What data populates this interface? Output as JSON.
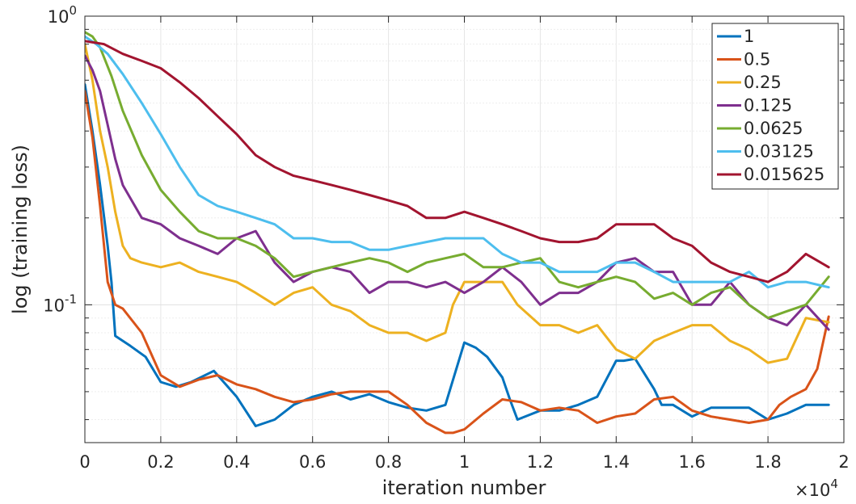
{
  "chart_data": {
    "type": "line",
    "xlabel": "iteration number",
    "ylabel": "log (training loss)",
    "x_multiplier_base": "×10",
    "x_multiplier_exp": "4",
    "x_scale": 10000,
    "xlim": [
      0,
      20000
    ],
    "ylim": [
      0.0333,
      1.0
    ],
    "y_scale": "log",
    "x_ticks": [
      0,
      2000,
      4000,
      6000,
      8000,
      10000,
      12000,
      14000,
      16000,
      18000,
      20000
    ],
    "x_tick_labels": [
      "0",
      "0.2",
      "0.4",
      "0.6",
      "0.8",
      "1",
      "1.2",
      "1.4",
      "1.6",
      "1.8",
      "2"
    ],
    "y_tick_labels": [
      {
        "value": 1.0,
        "base": "10",
        "exp": "0"
      },
      {
        "value": 0.1,
        "base": "10",
        "exp": "-1"
      }
    ],
    "grid": true,
    "legend_position": "top-right",
    "series": [
      {
        "name": "1",
        "color": "#0072BD",
        "x": [
          0,
          200,
          400,
          600,
          700,
          800,
          1200,
          1600,
          2000,
          2400,
          2800,
          3400,
          4000,
          4500,
          5000,
          5500,
          6000,
          6500,
          7000,
          7500,
          8000,
          8500,
          9000,
          9500,
          10000,
          10300,
          10600,
          11000,
          11200,
          11400,
          12000,
          12500,
          13000,
          13500,
          14000,
          14200,
          14500,
          15000,
          15200,
          15500,
          16000,
          16500,
          17000,
          17500,
          18000,
          18500,
          19000,
          19600
        ],
        "y": [
          0.58,
          0.4,
          0.26,
          0.16,
          0.12,
          0.078,
          0.072,
          0.066,
          0.054,
          0.052,
          0.054,
          0.059,
          0.048,
          0.038,
          0.04,
          0.045,
          0.048,
          0.05,
          0.047,
          0.049,
          0.046,
          0.044,
          0.043,
          0.045,
          0.074,
          0.071,
          0.066,
          0.056,
          0.047,
          0.04,
          0.043,
          0.043,
          0.045,
          0.048,
          0.064,
          0.064,
          0.065,
          0.051,
          0.045,
          0.045,
          0.041,
          0.044,
          0.044,
          0.044,
          0.04,
          0.042,
          0.045,
          0.045
        ]
      },
      {
        "name": "0.5",
        "color": "#D95319",
        "x": [
          0,
          200,
          400,
          600,
          800,
          1000,
          1500,
          2000,
          2500,
          3000,
          3500,
          4000,
          4500,
          5000,
          5500,
          6000,
          6500,
          7000,
          7500,
          8000,
          8500,
          9000,
          9500,
          9700,
          10000,
          10500,
          11000,
          11500,
          12000,
          12500,
          13000,
          13500,
          14000,
          14500,
          15000,
          15500,
          16000,
          16500,
          17000,
          17500,
          18000,
          18300,
          18600,
          19000,
          19300,
          19600
        ],
        "y": [
          0.55,
          0.38,
          0.22,
          0.12,
          0.1,
          0.097,
          0.08,
          0.057,
          0.052,
          0.055,
          0.057,
          0.053,
          0.051,
          0.048,
          0.046,
          0.047,
          0.049,
          0.05,
          0.05,
          0.05,
          0.045,
          0.039,
          0.036,
          0.036,
          0.037,
          0.042,
          0.047,
          0.046,
          0.043,
          0.044,
          0.043,
          0.039,
          0.041,
          0.042,
          0.047,
          0.048,
          0.043,
          0.041,
          0.04,
          0.039,
          0.04,
          0.045,
          0.048,
          0.051,
          0.06,
          0.091
        ]
      },
      {
        "name": "0.25",
        "color": "#EDB120",
        "x": [
          0,
          200,
          400,
          600,
          800,
          1000,
          1200,
          1500,
          2000,
          2500,
          3000,
          3500,
          4000,
          4500,
          5000,
          5500,
          6000,
          6500,
          7000,
          7500,
          8000,
          8500,
          9000,
          9500,
          9700,
          10000,
          10500,
          11000,
          11400,
          12000,
          12500,
          13000,
          13500,
          14000,
          14500,
          15000,
          15500,
          16000,
          16500,
          17000,
          17500,
          18000,
          18500,
          19000,
          19600
        ],
        "y": [
          0.8,
          0.6,
          0.4,
          0.3,
          0.21,
          0.16,
          0.145,
          0.14,
          0.135,
          0.14,
          0.13,
          0.125,
          0.12,
          0.11,
          0.1,
          0.11,
          0.115,
          0.1,
          0.095,
          0.085,
          0.08,
          0.08,
          0.075,
          0.08,
          0.1,
          0.12,
          0.12,
          0.12,
          0.1,
          0.085,
          0.085,
          0.08,
          0.085,
          0.07,
          0.065,
          0.075,
          0.08,
          0.085,
          0.085,
          0.075,
          0.07,
          0.063,
          0.065,
          0.09,
          0.087
        ]
      },
      {
        "name": "0.125",
        "color": "#7E2F8E",
        "x": [
          0,
          200,
          400,
          600,
          800,
          1000,
          1500,
          2000,
          2500,
          3000,
          3500,
          4000,
          4500,
          5000,
          5500,
          6000,
          6500,
          7000,
          7500,
          8000,
          8500,
          9000,
          9500,
          10000,
          10500,
          11000,
          11500,
          12000,
          12500,
          13000,
          13500,
          14000,
          14500,
          15000,
          15500,
          16000,
          16500,
          17000,
          17500,
          18000,
          18500,
          19000,
          19600
        ],
        "y": [
          0.73,
          0.65,
          0.55,
          0.42,
          0.32,
          0.26,
          0.2,
          0.19,
          0.17,
          0.16,
          0.15,
          0.17,
          0.18,
          0.14,
          0.12,
          0.13,
          0.135,
          0.13,
          0.11,
          0.12,
          0.12,
          0.115,
          0.12,
          0.11,
          0.12,
          0.135,
          0.12,
          0.1,
          0.11,
          0.11,
          0.12,
          0.14,
          0.145,
          0.13,
          0.13,
          0.1,
          0.1,
          0.12,
          0.1,
          0.09,
          0.085,
          0.1,
          0.082
        ]
      },
      {
        "name": "0.0625",
        "color": "#77AC30",
        "x": [
          0,
          200,
          400,
          700,
          1000,
          1500,
          2000,
          2500,
          3000,
          3500,
          4000,
          4500,
          5000,
          5500,
          6000,
          6500,
          7000,
          7500,
          8000,
          8500,
          9000,
          9500,
          10000,
          10500,
          11000,
          11500,
          12000,
          12500,
          13000,
          13500,
          14000,
          14500,
          15000,
          15500,
          16000,
          16500,
          17000,
          17500,
          18000,
          18500,
          19000,
          19600
        ],
        "y": [
          0.88,
          0.85,
          0.78,
          0.62,
          0.47,
          0.33,
          0.25,
          0.21,
          0.18,
          0.17,
          0.17,
          0.16,
          0.145,
          0.125,
          0.13,
          0.135,
          0.14,
          0.145,
          0.14,
          0.13,
          0.14,
          0.145,
          0.15,
          0.135,
          0.135,
          0.14,
          0.145,
          0.12,
          0.115,
          0.12,
          0.125,
          0.12,
          0.105,
          0.11,
          0.1,
          0.11,
          0.115,
          0.1,
          0.09,
          0.095,
          0.1,
          0.125
        ]
      },
      {
        "name": "0.03125",
        "color": "#4DBEEE",
        "x": [
          0,
          300,
          600,
          1000,
          1500,
          2000,
          2500,
          3000,
          3500,
          4000,
          4500,
          5000,
          5500,
          6000,
          6500,
          7000,
          7500,
          8000,
          8500,
          9000,
          9500,
          10000,
          10500,
          11000,
          11500,
          12000,
          12500,
          13000,
          13500,
          14000,
          14500,
          15000,
          15500,
          16000,
          16500,
          17000,
          17500,
          18000,
          18500,
          19000,
          19600
        ],
        "y": [
          0.85,
          0.8,
          0.74,
          0.63,
          0.5,
          0.39,
          0.3,
          0.24,
          0.22,
          0.21,
          0.2,
          0.19,
          0.17,
          0.17,
          0.165,
          0.165,
          0.155,
          0.155,
          0.16,
          0.165,
          0.17,
          0.17,
          0.17,
          0.15,
          0.14,
          0.14,
          0.13,
          0.13,
          0.13,
          0.14,
          0.14,
          0.13,
          0.12,
          0.12,
          0.12,
          0.12,
          0.13,
          0.115,
          0.12,
          0.12,
          0.115
        ]
      },
      {
        "name": "0.015625",
        "color": "#A2142F",
        "x": [
          0,
          500,
          1000,
          1500,
          2000,
          2500,
          3000,
          3500,
          4000,
          4500,
          5000,
          5500,
          6000,
          6500,
          7000,
          7500,
          8000,
          8500,
          9000,
          9500,
          10000,
          10500,
          11000,
          11500,
          12000,
          12500,
          13000,
          13500,
          14000,
          14500,
          15000,
          15500,
          16000,
          16500,
          17000,
          17500,
          18000,
          18500,
          19000,
          19600
        ],
        "y": [
          0.82,
          0.8,
          0.74,
          0.7,
          0.66,
          0.59,
          0.52,
          0.45,
          0.39,
          0.33,
          0.3,
          0.28,
          0.27,
          0.26,
          0.25,
          0.24,
          0.23,
          0.22,
          0.2,
          0.2,
          0.21,
          0.2,
          0.19,
          0.18,
          0.17,
          0.165,
          0.165,
          0.17,
          0.19,
          0.19,
          0.19,
          0.17,
          0.16,
          0.14,
          0.13,
          0.125,
          0.12,
          0.13,
          0.15,
          0.135
        ]
      }
    ]
  }
}
